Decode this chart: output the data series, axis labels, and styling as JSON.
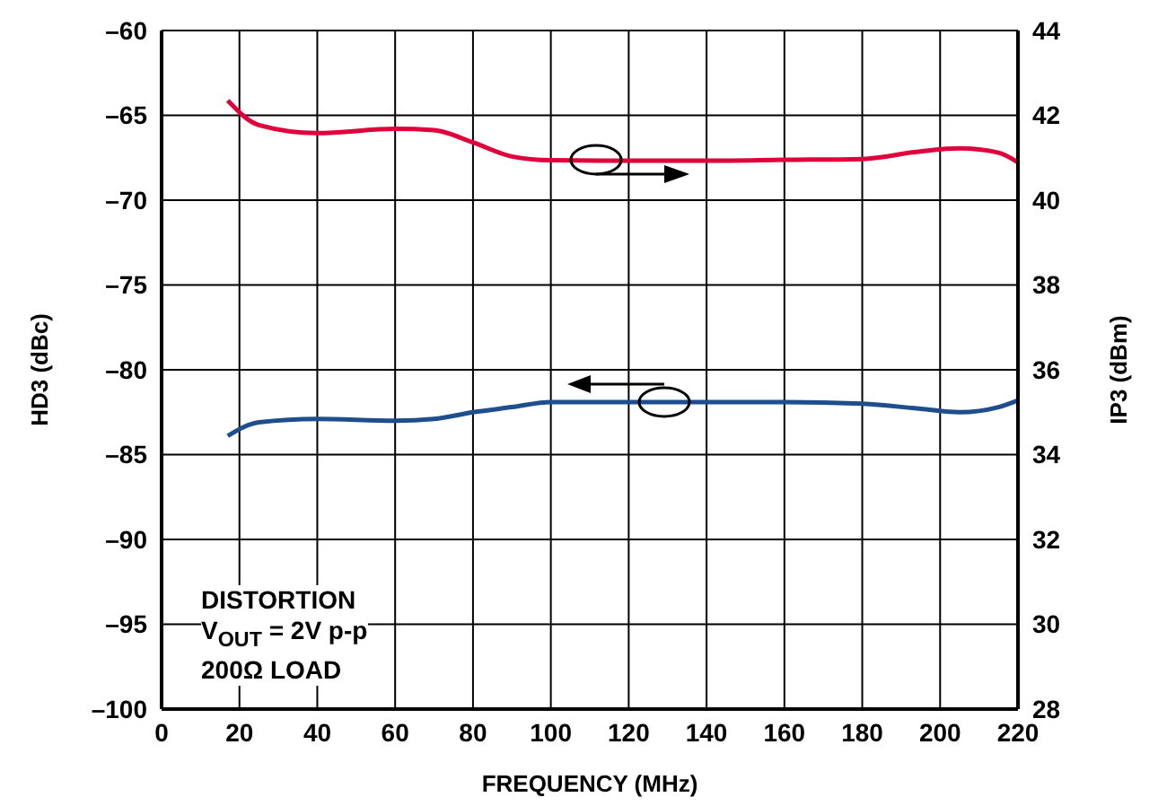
{
  "chart_data": {
    "type": "line",
    "xlabel": "FREQUENCY (MHz)",
    "ylabel": "HD3 (dBc)",
    "y2label": "IP3 (dBm)",
    "x": [
      17,
      25,
      40,
      60,
      70,
      80,
      90,
      100,
      120,
      140,
      160,
      180,
      195,
      205,
      215,
      220
    ],
    "series": [
      {
        "color": "#1f4e8c",
        "axis": "y",
        "values": [
          -83.9,
          -83.1,
          -82.9,
          -83.0,
          -82.9,
          -82.5,
          -82.2,
          -81.9,
          -81.9,
          -81.9,
          -81.9,
          -82.0,
          -82.3,
          -82.5,
          -82.2,
          -81.8
        ]
      },
      {
        "color": "#e0003c",
        "axis": "y2",
        "values": [
          42.35,
          41.77,
          41.58,
          41.68,
          41.65,
          41.36,
          41.03,
          40.94,
          40.93,
          40.93,
          40.95,
          40.97,
          41.15,
          41.22,
          41.12,
          40.89
        ]
      }
    ],
    "xlim": [
      0,
      220
    ],
    "xticks": [
      0,
      20,
      40,
      60,
      80,
      100,
      120,
      140,
      160,
      180,
      200,
      220
    ],
    "ylim": [
      -100,
      -60
    ],
    "yticks": [
      {
        "value": -100,
        "label": "–100"
      },
      {
        "value": -95,
        "label": "–95"
      },
      {
        "value": -90,
        "label": "–90"
      },
      {
        "value": -85,
        "label": "–85"
      },
      {
        "value": -80,
        "label": "–80"
      },
      {
        "value": -75,
        "label": "–75"
      },
      {
        "value": -70,
        "label": "–70"
      },
      {
        "value": -65,
        "label": "–65"
      },
      {
        "value": -60,
        "label": "–60"
      }
    ],
    "y2lim": [
      28,
      44
    ],
    "y2ticks": [
      28,
      30,
      32,
      34,
      36,
      38,
      40,
      42,
      44
    ],
    "grid": true,
    "marker": "none",
    "line_style": "solid",
    "annotations": [
      "DISTORTION",
      "V$_{OUT}$ = 2V p-p",
      "200Ω LOAD"
    ]
  }
}
